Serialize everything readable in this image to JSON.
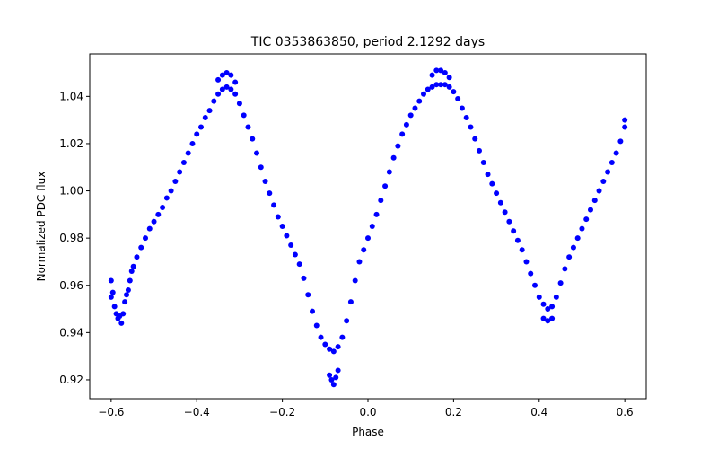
{
  "chart_data": {
    "type": "scatter",
    "title": "TIC 0353863850, period 2.1292 days",
    "xlabel": "Phase",
    "ylabel": "Normalized PDC flux",
    "xlim": [
      -0.65,
      0.65
    ],
    "ylim": [
      0.912,
      1.058
    ],
    "x_ticks": [
      -0.6,
      -0.4,
      -0.2,
      0.0,
      0.2,
      0.4,
      0.6
    ],
    "x_tick_labels": [
      "−0.6",
      "−0.4",
      "−0.2",
      "0.0",
      "0.2",
      "0.4",
      "0.6"
    ],
    "y_ticks": [
      0.92,
      0.94,
      0.96,
      0.98,
      1.0,
      1.02,
      1.04
    ],
    "y_tick_labels": [
      "0.92",
      "0.94",
      "0.96",
      "0.98",
      "1.00",
      "1.02",
      "1.04"
    ],
    "grid": false,
    "marker_color": "#0000ff",
    "series": [
      {
        "points": [
          [
            -0.6,
            0.962
          ],
          [
            -0.596,
            0.957
          ],
          [
            -0.592,
            0.951
          ],
          [
            -0.588,
            0.948
          ],
          [
            -0.584,
            0.946
          ],
          [
            -0.58,
            0.947
          ],
          [
            -0.576,
            0.944
          ],
          [
            -0.572,
            0.948
          ],
          [
            -0.568,
            0.953
          ],
          [
            -0.564,
            0.956
          ],
          [
            -0.56,
            0.958
          ],
          [
            -0.556,
            0.962
          ],
          [
            -0.552,
            0.966
          ],
          [
            -0.548,
            0.968
          ],
          [
            -0.54,
            0.972
          ],
          [
            -0.53,
            0.976
          ],
          [
            -0.52,
            0.98
          ],
          [
            -0.51,
            0.984
          ],
          [
            -0.5,
            0.987
          ],
          [
            -0.49,
            0.99
          ],
          [
            -0.48,
            0.993
          ],
          [
            -0.47,
            0.997
          ],
          [
            -0.46,
            1.0
          ],
          [
            -0.45,
            1.004
          ],
          [
            -0.44,
            1.008
          ],
          [
            -0.43,
            1.012
          ],
          [
            -0.42,
            1.016
          ],
          [
            -0.41,
            1.02
          ],
          [
            -0.4,
            1.024
          ],
          [
            -0.39,
            1.027
          ],
          [
            -0.38,
            1.031
          ],
          [
            -0.37,
            1.034
          ],
          [
            -0.36,
            1.038
          ],
          [
            -0.35,
            1.041
          ],
          [
            -0.34,
            1.043
          ],
          [
            -0.33,
            1.044
          ],
          [
            -0.32,
            1.043
          ],
          [
            -0.31,
            1.041
          ],
          [
            -0.3,
            1.037
          ],
          [
            -0.29,
            1.032
          ],
          [
            -0.28,
            1.027
          ],
          [
            -0.27,
            1.022
          ],
          [
            -0.26,
            1.016
          ],
          [
            -0.25,
            1.01
          ],
          [
            -0.24,
            1.004
          ],
          [
            -0.23,
            0.999
          ],
          [
            -0.22,
            0.994
          ],
          [
            -0.21,
            0.989
          ],
          [
            -0.2,
            0.985
          ],
          [
            -0.19,
            0.981
          ],
          [
            -0.18,
            0.977
          ],
          [
            -0.17,
            0.973
          ],
          [
            -0.16,
            0.969
          ],
          [
            -0.15,
            0.963
          ],
          [
            -0.14,
            0.956
          ],
          [
            -0.13,
            0.949
          ],
          [
            -0.12,
            0.943
          ],
          [
            -0.11,
            0.938
          ],
          [
            -0.1,
            0.935
          ],
          [
            -0.09,
            0.933
          ],
          [
            -0.08,
            0.932
          ],
          [
            -0.07,
            0.934
          ],
          [
            -0.06,
            0.938
          ],
          [
            -0.05,
            0.945
          ],
          [
            -0.04,
            0.953
          ],
          [
            -0.03,
            0.962
          ],
          [
            -0.02,
            0.97
          ],
          [
            -0.01,
            0.975
          ],
          [
            0.0,
            0.98
          ],
          [
            0.01,
            0.985
          ],
          [
            0.02,
            0.99
          ],
          [
            0.03,
            0.996
          ],
          [
            0.04,
            1.002
          ],
          [
            0.05,
            1.008
          ],
          [
            0.06,
            1.014
          ],
          [
            0.07,
            1.019
          ],
          [
            0.08,
            1.024
          ],
          [
            0.09,
            1.028
          ],
          [
            0.1,
            1.032
          ],
          [
            0.11,
            1.035
          ],
          [
            0.12,
            1.038
          ],
          [
            0.13,
            1.041
          ],
          [
            0.14,
            1.043
          ],
          [
            0.15,
            1.044
          ],
          [
            0.16,
            1.045
          ],
          [
            0.17,
            1.045
          ],
          [
            0.18,
            1.045
          ],
          [
            0.19,
            1.044
          ],
          [
            0.2,
            1.042
          ],
          [
            0.21,
            1.039
          ],
          [
            0.22,
            1.035
          ],
          [
            0.23,
            1.031
          ],
          [
            0.24,
            1.027
          ],
          [
            0.25,
            1.022
          ],
          [
            0.26,
            1.017
          ],
          [
            0.27,
            1.012
          ],
          [
            0.28,
            1.007
          ],
          [
            0.29,
            1.003
          ],
          [
            0.3,
            0.999
          ],
          [
            0.31,
            0.995
          ],
          [
            0.32,
            0.991
          ],
          [
            0.33,
            0.987
          ],
          [
            0.34,
            0.983
          ],
          [
            0.35,
            0.979
          ],
          [
            0.36,
            0.975
          ],
          [
            0.37,
            0.97
          ],
          [
            0.38,
            0.965
          ],
          [
            0.39,
            0.96
          ],
          [
            0.4,
            0.955
          ],
          [
            0.41,
            0.952
          ],
          [
            0.42,
            0.95
          ],
          [
            0.43,
            0.951
          ],
          [
            0.44,
            0.955
          ],
          [
            0.45,
            0.961
          ],
          [
            0.46,
            0.967
          ],
          [
            0.47,
            0.972
          ],
          [
            0.48,
            0.976
          ],
          [
            0.49,
            0.98
          ],
          [
            0.5,
            0.984
          ],
          [
            0.51,
            0.988
          ],
          [
            0.52,
            0.992
          ],
          [
            0.53,
            0.996
          ],
          [
            0.54,
            1.0
          ],
          [
            0.55,
            1.004
          ],
          [
            0.56,
            1.008
          ],
          [
            0.57,
            1.012
          ],
          [
            0.58,
            1.016
          ],
          [
            0.59,
            1.021
          ],
          [
            0.6,
            1.027
          ],
          [
            -0.35,
            1.047
          ],
          [
            -0.34,
            1.049
          ],
          [
            -0.33,
            1.05
          ],
          [
            -0.32,
            1.049
          ],
          [
            -0.31,
            1.046
          ],
          [
            -0.09,
            0.922
          ],
          [
            -0.085,
            0.92
          ],
          [
            -0.08,
            0.918
          ],
          [
            -0.075,
            0.921
          ],
          [
            -0.07,
            0.924
          ],
          [
            0.15,
            1.049
          ],
          [
            0.16,
            1.051
          ],
          [
            0.17,
            1.051
          ],
          [
            0.18,
            1.05
          ],
          [
            0.19,
            1.048
          ],
          [
            0.41,
            0.946
          ],
          [
            0.42,
            0.945
          ],
          [
            0.43,
            0.946
          ],
          [
            0.6,
            1.03
          ],
          [
            -0.6,
            0.955
          ]
        ]
      }
    ]
  }
}
